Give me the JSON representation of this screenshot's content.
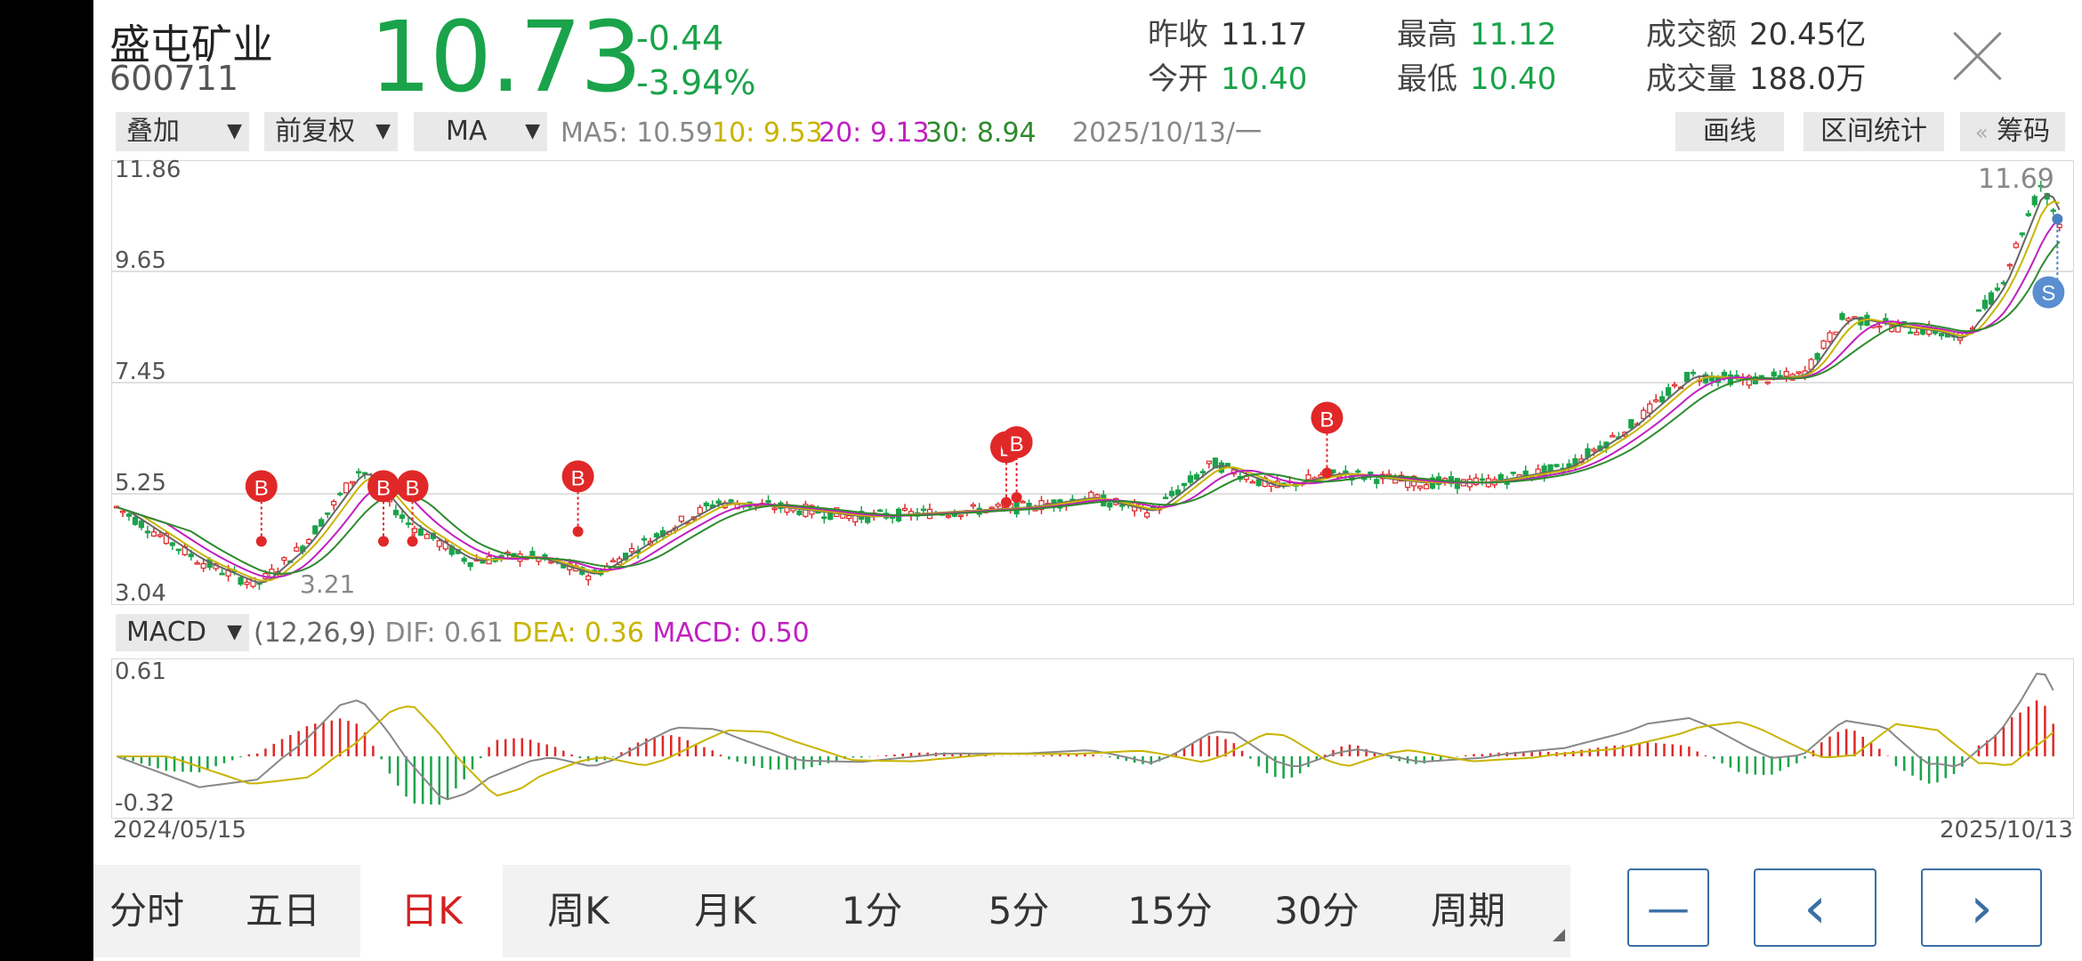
{
  "stock": {
    "name": "盛屯矿业",
    "code": "600711",
    "price": "10.73",
    "change": "-0.44",
    "change_pct": "-3.94%"
  },
  "stats": [
    {
      "label": "昨收",
      "value": "11.17",
      "color": "#333333"
    },
    {
      "label": "最高",
      "value": "11.12",
      "color": "#1aa34a"
    },
    {
      "label": "成交额",
      "value": "20.45亿",
      "color": "#333333"
    },
    {
      "label": "今开",
      "value": "10.40",
      "color": "#1aa34a"
    },
    {
      "label": "最低",
      "value": "10.40",
      "color": "#1aa34a"
    },
    {
      "label": "成交量",
      "value": "188.0万",
      "color": "#333333"
    }
  ],
  "toolbar": {
    "overlay": "叠加",
    "fq": "前复权",
    "ma": "MA",
    "ma5": "MA5: 10.59",
    "ma10": "10: 9.53",
    "ma20": "20: 9.13",
    "ma30": "30: 8.94",
    "date": "2025/10/13/一",
    "draw": "画线",
    "range_stats": "区间统计",
    "chips": "筹码",
    "chips_arrow": "«"
  },
  "main_axis": {
    "labels": [
      "11.86",
      "9.65",
      "7.45",
      "5.25",
      "3.04"
    ],
    "max_label": "11.69",
    "min_label": "3.21"
  },
  "macd": {
    "selector": "MACD",
    "params": "(12,26,9)",
    "dif": "DIF: 0.61",
    "dea": "DEA: 0.36",
    "macd": "MACD: 0.50",
    "ymax": "0.61",
    "ymin": "-0.32"
  },
  "dates": {
    "start": "2024/05/15",
    "end": "2025/10/13"
  },
  "signals": {
    "buy": "B",
    "sell": "S"
  },
  "tabs": [
    "分时",
    "五日",
    "日K",
    "周K",
    "月K",
    "1分",
    "5分",
    "15分",
    "30分",
    "周期"
  ],
  "active_tab": "日K",
  "nav": {
    "minus": "—",
    "prev": "‹",
    "next": "›"
  },
  "colors": {
    "up": "#e02828",
    "down": "#1aa34a",
    "ma5": "#666666",
    "ma10": "#c8b400",
    "ma20": "#c020c0",
    "ma30": "#2e8b2e",
    "accent": "#3a6ea5"
  }
}
